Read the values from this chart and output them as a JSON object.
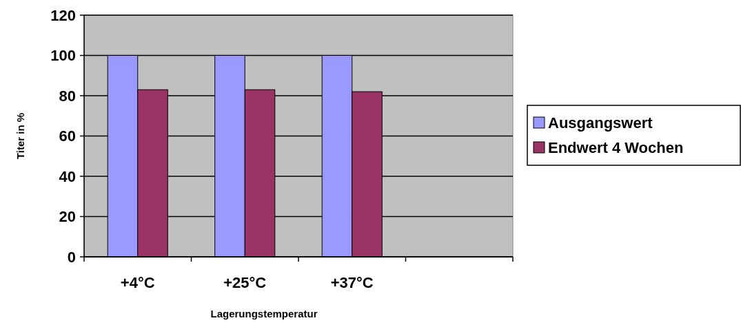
{
  "chart_data": {
    "type": "bar",
    "xlabel": "Lagerungstemperatur",
    "ylabel": "Titer in %",
    "categories": [
      "+4°C",
      "+25°C",
      "+37°C",
      null
    ],
    "series": [
      {
        "name": "Ausgangswert",
        "color": "#9999ff",
        "values": [
          100,
          100,
          100,
          null
        ]
      },
      {
        "name": "Endwert 4 Wochen",
        "color": "#993366",
        "values": [
          83,
          83,
          82,
          null
        ]
      }
    ],
    "ylim": [
      0,
      120
    ],
    "yticks": [
      0,
      20,
      40,
      60,
      80,
      100,
      120
    ],
    "grid": "y",
    "legend": "right"
  }
}
